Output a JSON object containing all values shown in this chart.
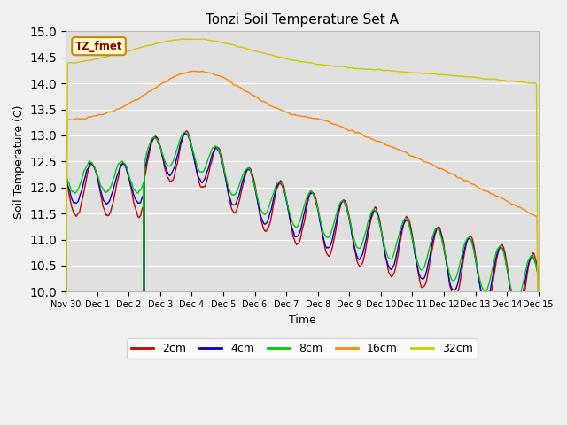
{
  "title": "Tonzi Soil Temperature Set A",
  "xlabel": "Time",
  "ylabel": "Soil Temperature (C)",
  "ylim": [
    10.0,
    15.0
  ],
  "yticks": [
    10.0,
    10.5,
    11.0,
    11.5,
    12.0,
    12.5,
    13.0,
    13.5,
    14.0,
    14.5,
    15.0
  ],
  "xtick_labels": [
    "Nov 30",
    "Dec 1",
    "Dec 2",
    "Dec 3",
    "Dec 4",
    "Dec 5",
    "Dec 6",
    "Dec 7",
    "Dec 8",
    "Dec 9Dec",
    "10Dec",
    "11Dec",
    "12Dec",
    "13Dec",
    "14Dec 15"
  ],
  "colors": {
    "2cm": "#cc0000",
    "4cm": "#0000cc",
    "8cm": "#00cc00",
    "16cm": "#ff8800",
    "32cm": "#cccc00"
  },
  "legend_label": "TZ_fmet",
  "fig_bg": "#f0f0f0",
  "plot_bg": "#e0e0e0",
  "grid_color": "#ffffff"
}
